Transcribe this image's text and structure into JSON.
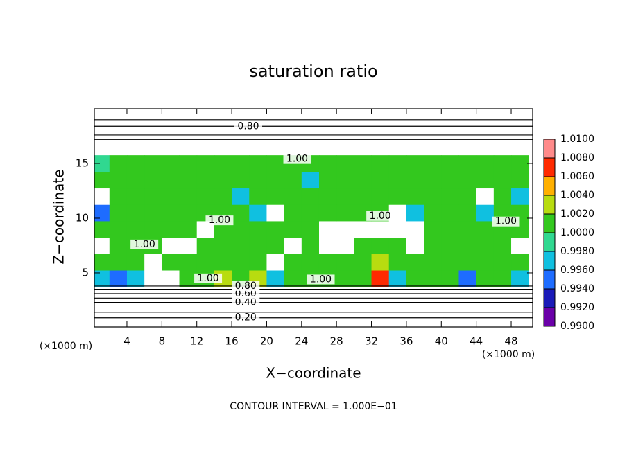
{
  "chart_data": {
    "type": "contour",
    "title": "saturation ratio",
    "xlabel": "X−coordinate",
    "ylabel": "Z−coordinate",
    "xunit": "(×1000 m)",
    "yunit": "(×1000 m)",
    "footnote": "CONTOUR INTERVAL = 1.000E−01",
    "xlim": [
      0.27,
      50.46
    ],
    "ylim": [
      0.06,
      20
    ],
    "xticks": [
      4,
      8,
      12,
      16,
      20,
      24,
      28,
      32,
      36,
      40,
      44,
      48
    ],
    "yticks": [
      5,
      10,
      15
    ],
    "colorbar": {
      "ticks": [
        {
          "value": 0.99,
          "label": "0.9900"
        },
        {
          "value": 0.992,
          "label": "0.9920"
        },
        {
          "value": 0.994,
          "label": "0.9940"
        },
        {
          "value": 0.996,
          "label": "0.9960"
        },
        {
          "value": 0.998,
          "label": "0.9980"
        },
        {
          "value": 1.0,
          "label": "1.0000"
        },
        {
          "value": 1.002,
          "label": "1.0020"
        },
        {
          "value": 1.004,
          "label": "1.0040"
        },
        {
          "value": 1.006,
          "label": "1.0060"
        },
        {
          "value": 1.008,
          "label": "1.0080"
        },
        {
          "value": 1.01,
          "label": "1.0100"
        }
      ],
      "colors": [
        "#6a00a8",
        "#1a1ab8",
        "#1e6cff",
        "#10c0e0",
        "#30d890",
        "#33c81e",
        "#b8dc10",
        "#ffb000",
        "#ff2a00",
        "#ff8a8a"
      ]
    },
    "field": {
      "x": [
        1,
        3,
        5,
        7,
        9,
        11,
        13,
        15,
        17,
        19,
        21,
        23,
        25,
        27,
        29,
        31,
        33,
        35,
        37,
        39,
        41,
        43,
        45,
        47,
        49
      ],
      "z": [
        4.5,
        6,
        7.5,
        9,
        10.5,
        12,
        13.5,
        15
      ],
      "values": [
        [
          0.997,
          0.996,
          0.997,
          0.985,
          0.985,
          1.001,
          1.002,
          1.003,
          1.001,
          1.003,
          0.997,
          1.001,
          1.001,
          1.001,
          1.001,
          1.001,
          1.007,
          0.997,
          1.001,
          1.001,
          1.001,
          0.995,
          1.002,
          1.001,
          0.997
        ],
        [
          1.001,
          1.001,
          1.001,
          0.985,
          1.001,
          1.001,
          1.001,
          1.002,
          1.001,
          1.002,
          0.985,
          1.001,
          1.001,
          1.001,
          1.001,
          1.002,
          1.004,
          1.001,
          1.001,
          1.001,
          1.001,
          1.002,
          1.002,
          1.001,
          1.001
        ],
        [
          0.985,
          1.001,
          1.001,
          1.002,
          0.985,
          0.985,
          1.001,
          1.001,
          1.001,
          1.001,
          1.001,
          0.985,
          1.001,
          0.985,
          0.985,
          1.001,
          1.001,
          1.001,
          0.985,
          1.001,
          1.001,
          1.002,
          1.001,
          1.001,
          0.985
        ],
        [
          1.001,
          1.001,
          1.001,
          1.001,
          1.001,
          1.002,
          0.985,
          1.001,
          1.001,
          1.001,
          1.001,
          1.001,
          1.001,
          0.985,
          0.985,
          0.985,
          0.985,
          0.985,
          0.985,
          1.001,
          1.001,
          1.001,
          1.001,
          1.001,
          1.001
        ],
        [
          0.996,
          1.001,
          1.001,
          1.001,
          1.001,
          1.001,
          1.001,
          1.001,
          1.001,
          0.997,
          0.985,
          1.001,
          1.001,
          1.001,
          1.001,
          1.001,
          1.001,
          0.985,
          0.997,
          1.001,
          1.001,
          1.001,
          0.998,
          1.001,
          1.001
        ],
        [
          0.985,
          1.001,
          1.001,
          1.001,
          1.001,
          1.001,
          1.001,
          1.001,
          0.998,
          1.001,
          1.001,
          1.001,
          1.001,
          1.001,
          1.001,
          1.001,
          1.001,
          1.001,
          1.001,
          1.001,
          1.001,
          1.001,
          0.985,
          1.001,
          0.997
        ],
        [
          1.001,
          1.001,
          1.001,
          1.001,
          1.001,
          1.001,
          1.001,
          1.001,
          1.001,
          1.001,
          1.001,
          1.001,
          0.998,
          1.001,
          1.001,
          1.001,
          1.001,
          1.001,
          1.001,
          1.001,
          1.001,
          1.001,
          1.001,
          1.001,
          1.001
        ],
        [
          0.999,
          1.001,
          1.001,
          1.001,
          1.001,
          1.001,
          1.001,
          1.001,
          1.001,
          1.001,
          1.001,
          1.001,
          1.001,
          1.001,
          1.001,
          1.001,
          1.001,
          1.001,
          1.001,
          1.001,
          1.001,
          1.001,
          1.001,
          1.001,
          1.001
        ]
      ]
    },
    "isolines": [
      {
        "level": 0.2,
        "z": 0.9
      },
      {
        "level": 0.2,
        "z": 1.4
      },
      {
        "level": 0.4,
        "z": 2.3
      },
      {
        "level": 0.4,
        "z": 2.7
      },
      {
        "level": 0.6,
        "z": 3.1
      },
      {
        "level": 0.8,
        "z": 3.5
      },
      {
        "level": 0.8,
        "z": 3.8
      },
      {
        "level": 0.8,
        "z": 17.2
      },
      {
        "level": 0.8,
        "z": 17.6
      },
      {
        "level": 0.8,
        "z": 18.4
      },
      {
        "level": 0.8,
        "z": 19.0
      }
    ],
    "contour_labels": [
      {
        "level": 0.2,
        "label": "0.20",
        "x": 17.6,
        "z": 0.9
      },
      {
        "level": 0.4,
        "label": "0.40",
        "x": 17.6,
        "z": 2.3
      },
      {
        "level": 0.6,
        "label": "0.60",
        "x": 17.6,
        "z": 3.1
      },
      {
        "level": 0.8,
        "label": "0.80",
        "x": 17.6,
        "z": 3.8
      },
      {
        "level": 0.8,
        "label": "0.80",
        "x": 17.9,
        "z": 18.4
      },
      {
        "level": 1.0,
        "label": "1.00",
        "x": 23.5,
        "z": 15.4
      },
      {
        "level": 1.0,
        "label": "1.00",
        "x": 14.6,
        "z": 9.8
      },
      {
        "level": 1.0,
        "label": "1.00",
        "x": 6.0,
        "z": 7.6
      },
      {
        "level": 1.0,
        "label": "1.00",
        "x": 13.3,
        "z": 4.5
      },
      {
        "level": 1.0,
        "label": "1.00",
        "x": 26.2,
        "z": 4.4
      },
      {
        "level": 1.0,
        "label": "1.00",
        "x": 33.0,
        "z": 10.2
      },
      {
        "level": 1.0,
        "label": "1.00",
        "x": 47.4,
        "z": 9.7
      }
    ]
  }
}
